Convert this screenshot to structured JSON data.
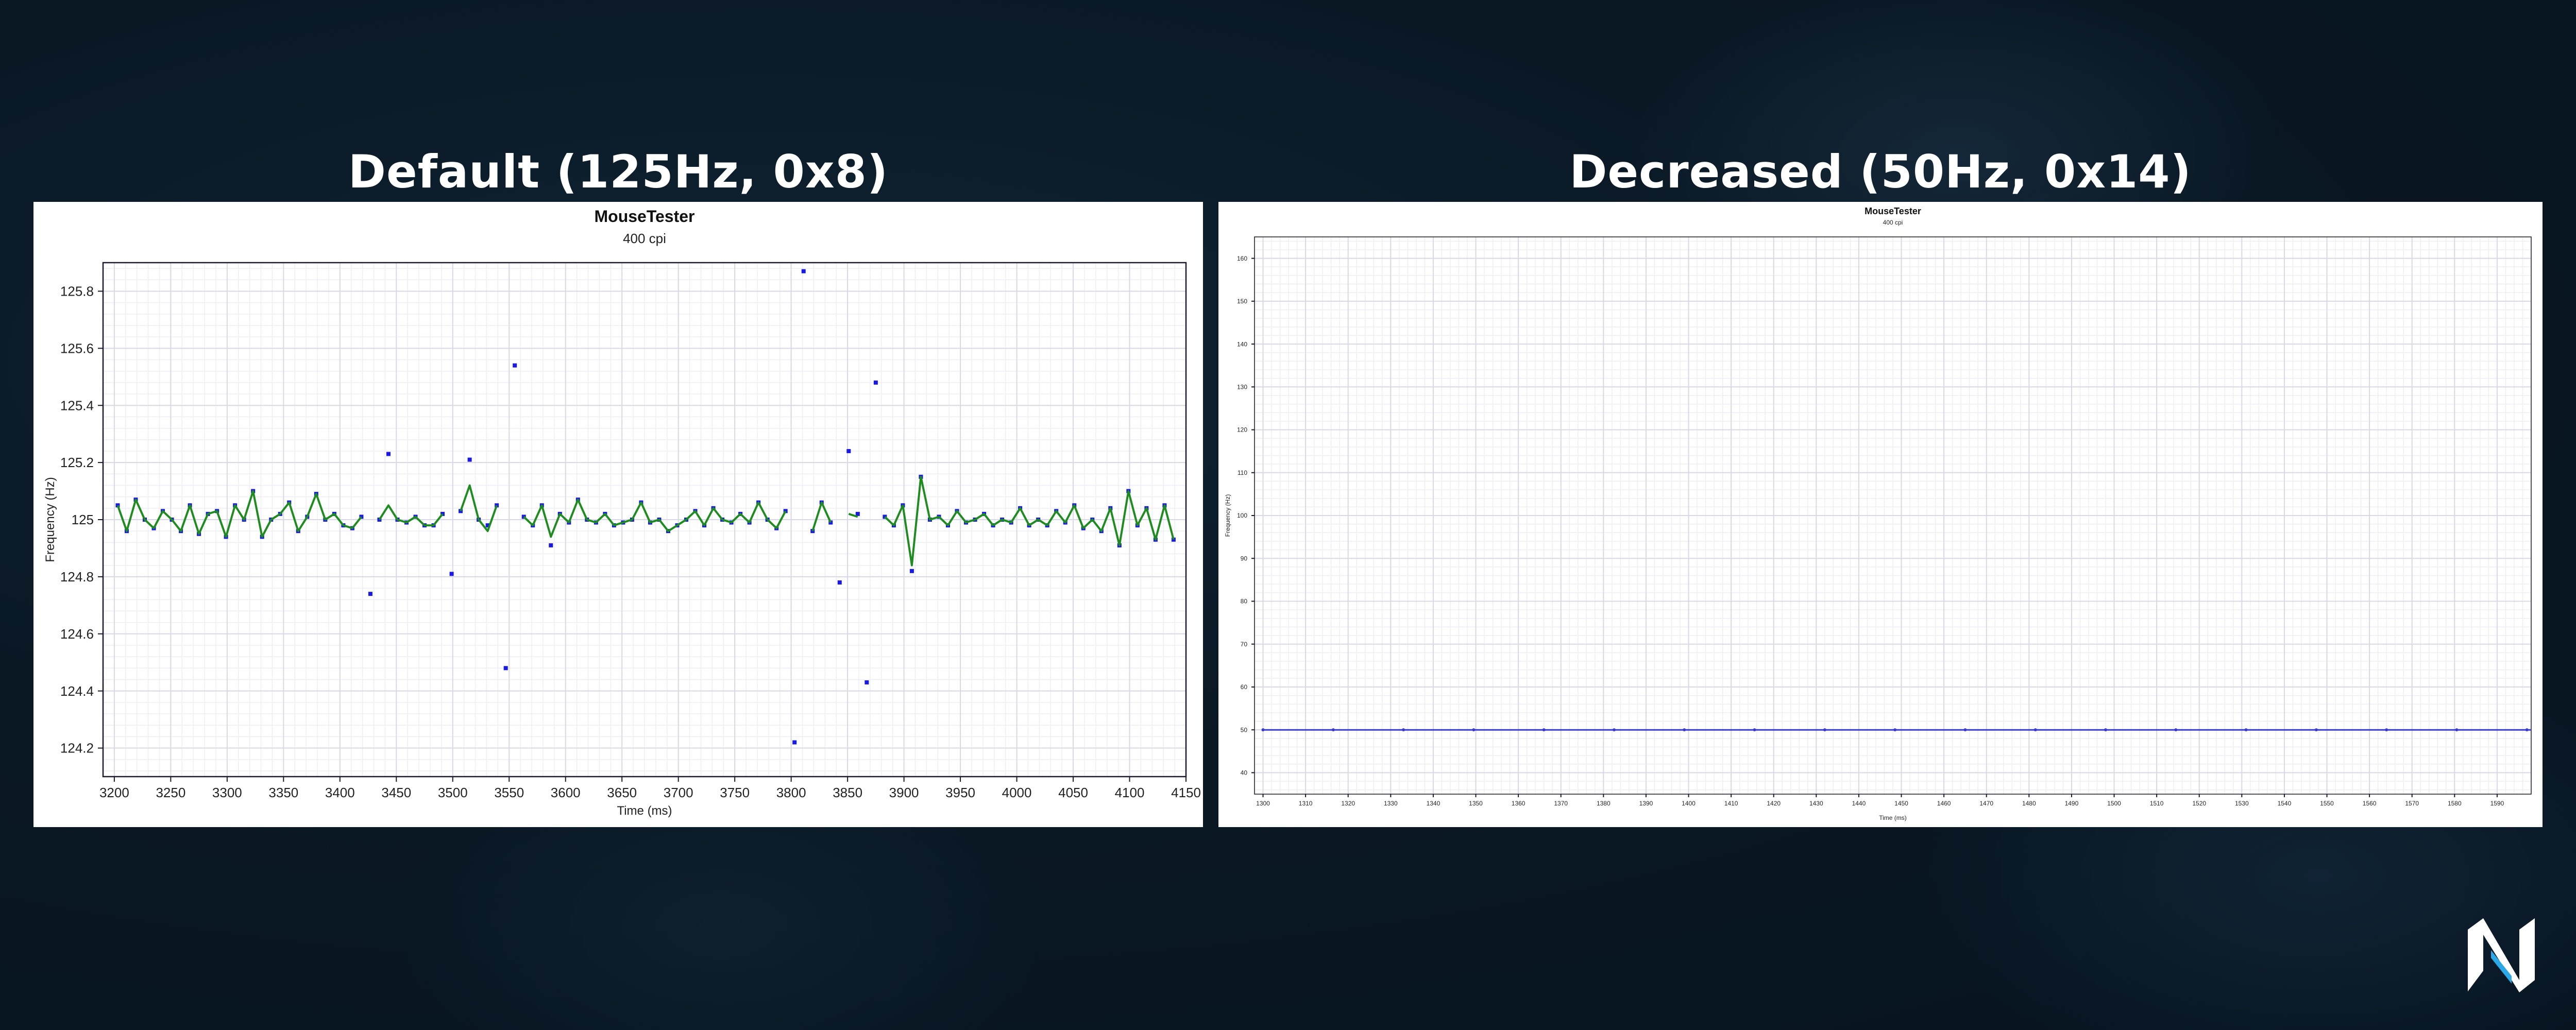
{
  "panels": {
    "left": {
      "heading": "Default (125Hz, 0x8)"
    },
    "right": {
      "heading": "Decreased (50Hz, 0x14)"
    }
  },
  "colors": {
    "background": "#0a1824",
    "points": "#1a1ae6",
    "interpolated_line": "#1e8c1e",
    "flat_line": "#3a3ad6",
    "grid": "#dcdcec"
  },
  "logo_icon": "nh-logo-icon",
  "chart_data": [
    {
      "type": "scatter",
      "title": "MouseTester",
      "subtitle": "400 cpi",
      "xlabel": "Time (ms)",
      "ylabel": "Frequency (Hz)",
      "xlim": [
        3190,
        4150
      ],
      "ylim": [
        124.1,
        125.9
      ],
      "xticks": [
        3200,
        3250,
        3300,
        3350,
        3400,
        3450,
        3500,
        3550,
        3600,
        3650,
        3700,
        3750,
        3800,
        3850,
        3900,
        3950,
        4000,
        4050,
        4100,
        4150
      ],
      "yticks": [
        124.2,
        124.4,
        124.6,
        124.8,
        125,
        125.2,
        125.4,
        125.6,
        125.8
      ],
      "ytick_labels": [
        "124.2",
        "124.4",
        "124.6",
        "124.8",
        "125",
        "125.2",
        "125.4",
        "125.6",
        "125.8"
      ],
      "grid": true,
      "series": [
        {
          "marker": "point",
          "x": [
            3203,
            3211,
            3219,
            3227,
            3235,
            3243,
            3251,
            3259,
            3267,
            3275,
            3283,
            3291,
            3299,
            3307,
            3315,
            3323,
            3331,
            3339,
            3347,
            3355,
            3363,
            3371,
            3379,
            3387,
            3395,
            3403,
            3411,
            3419,
            3427,
            3435,
            3443,
            3451,
            3459,
            3467,
            3475,
            3483,
            3491,
            3499,
            3507,
            3515,
            3523,
            3531,
            3539,
            3547,
            3555,
            3563,
            3571,
            3579,
            3587,
            3595,
            3603,
            3611,
            3619,
            3627,
            3635,
            3643,
            3651,
            3659,
            3667,
            3675,
            3683,
            3691,
            3699,
            3707,
            3715,
            3723,
            3731,
            3739,
            3747,
            3755,
            3763,
            3771,
            3779,
            3787,
            3795,
            3803,
            3811,
            3819,
            3827,
            3835,
            3843,
            3851,
            3859,
            3867,
            3875,
            3883,
            3891,
            3899,
            3907,
            3915,
            3923,
            3931,
            3939,
            3947,
            3955,
            3963,
            3971,
            3979,
            3987,
            3995,
            4003,
            4011,
            4019,
            4027,
            4035,
            4043,
            4051,
            4059,
            4067,
            4075,
            4083,
            4091,
            4099,
            4107,
            4115,
            4123,
            4131,
            4139
          ],
          "y": [
            125.05,
            124.96,
            125.07,
            125.0,
            124.97,
            125.03,
            125.0,
            124.96,
            125.05,
            124.95,
            125.02,
            125.03,
            124.94,
            125.05,
            125.0,
            125.1,
            124.94,
            125.0,
            125.02,
            125.06,
            124.96,
            125.01,
            125.09,
            125.0,
            125.02,
            124.98,
            124.97,
            125.01,
            124.74,
            125.0,
            125.23,
            125.0,
            124.99,
            125.01,
            124.98,
            124.98,
            125.02,
            124.81,
            125.03,
            125.21,
            125.0,
            124.98,
            125.05,
            124.48,
            125.54,
            125.01,
            124.98,
            125.05,
            124.91,
            125.02,
            124.99,
            125.07,
            125.0,
            124.99,
            125.02,
            124.98,
            124.99,
            125.0,
            125.06,
            124.99,
            125.0,
            124.96,
            124.98,
            125.0,
            125.03,
            124.98,
            125.04,
            125.0,
            124.99,
            125.02,
            124.99,
            125.06,
            125.0,
            124.97,
            125.03,
            124.22,
            125.87,
            124.96,
            125.06,
            124.99,
            124.78,
            125.24,
            125.02,
            124.43,
            125.48,
            125.01,
            124.98,
            125.05,
            124.82,
            125.15,
            125.0,
            125.01,
            124.98,
            125.03,
            124.99,
            125.0,
            125.02,
            124.98,
            125.0,
            124.99,
            125.04,
            124.98,
            125.0,
            124.98,
            125.03,
            124.99,
            125.05,
            124.97,
            125.0,
            124.96,
            125.04,
            124.91,
            125.1,
            124.98,
            125.04,
            124.93,
            125.05,
            124.93
          ]
        },
        {
          "marker": "line",
          "x": [
            3203,
            3211,
            3219,
            3227,
            3235,
            3243,
            3251,
            3259,
            3267,
            3275,
            3283,
            3291,
            3299,
            3307,
            3315,
            3323,
            3331,
            3339,
            3347,
            3355,
            3363,
            3371,
            3379,
            3387,
            3395,
            3403,
            3411,
            3419,
            null,
            3435,
            3443,
            3451,
            3459,
            3467,
            3475,
            3483,
            3491,
            null,
            3507,
            3515,
            3523,
            3531,
            3539,
            null,
            3563,
            3571,
            3579,
            3587,
            3595,
            3603,
            3611,
            3619,
            3627,
            3635,
            3643,
            3651,
            3659,
            3667,
            3675,
            3683,
            3691,
            3699,
            3707,
            3715,
            3723,
            3731,
            3739,
            3747,
            3755,
            3763,
            3771,
            3779,
            3787,
            3795,
            null,
            3819,
            3827,
            3835,
            null,
            3851,
            3859,
            null,
            3883,
            3891,
            3899,
            3907,
            3915,
            3923,
            3931,
            3939,
            3947,
            3955,
            3963,
            3971,
            3979,
            3987,
            3995,
            4003,
            4011,
            4019,
            4027,
            4035,
            4043,
            4051,
            4059,
            4067,
            4075,
            4083,
            4091,
            4099,
            4107,
            4115,
            4123,
            4131,
            4139
          ],
          "y": [
            125.05,
            124.96,
            125.07,
            125.0,
            124.97,
            125.03,
            125.0,
            124.96,
            125.05,
            124.95,
            125.02,
            125.03,
            124.94,
            125.05,
            125.0,
            125.1,
            124.94,
            125.0,
            125.02,
            125.06,
            124.96,
            125.01,
            125.09,
            125.0,
            125.02,
            124.98,
            124.97,
            125.01,
            null,
            125.0,
            125.05,
            125.0,
            124.99,
            125.01,
            124.98,
            124.98,
            125.02,
            null,
            125.03,
            125.12,
            125.0,
            124.96,
            125.05,
            null,
            125.01,
            124.98,
            125.05,
            124.94,
            125.02,
            124.99,
            125.07,
            125.0,
            124.99,
            125.02,
            124.98,
            124.99,
            125.0,
            125.06,
            124.99,
            125.0,
            124.96,
            124.98,
            125.0,
            125.03,
            124.98,
            125.04,
            125.0,
            124.99,
            125.02,
            124.99,
            125.06,
            125.0,
            124.97,
            125.03,
            null,
            124.96,
            125.06,
            124.99,
            null,
            125.02,
            125.01,
            null,
            125.01,
            124.98,
            125.05,
            124.84,
            125.15,
            125.0,
            125.01,
            124.98,
            125.03,
            124.99,
            125.0,
            125.02,
            124.98,
            125.0,
            124.99,
            125.04,
            124.98,
            125.0,
            124.98,
            125.03,
            124.99,
            125.05,
            124.97,
            125.0,
            124.96,
            125.04,
            124.91,
            125.1,
            124.98,
            125.04,
            124.93,
            125.05,
            124.93
          ]
        }
      ]
    },
    {
      "type": "line",
      "title": "MouseTester",
      "subtitle": "400 cpi",
      "xlabel": "Time (ms)",
      "ylabel": "Frequency (Hz)",
      "xlim": [
        1298,
        1598
      ],
      "ylim": [
        35,
        165
      ],
      "xticks": [
        1300,
        1310,
        1320,
        1330,
        1340,
        1350,
        1360,
        1370,
        1380,
        1390,
        1400,
        1410,
        1420,
        1430,
        1440,
        1450,
        1460,
        1470,
        1480,
        1490,
        1500,
        1510,
        1520,
        1530,
        1540,
        1550,
        1560,
        1570,
        1580,
        1590
      ],
      "yticks": [
        40,
        50,
        60,
        70,
        80,
        90,
        100,
        110,
        120,
        130,
        140,
        150,
        160
      ],
      "grid": true,
      "series": [
        {
          "marker": "line",
          "x": [
            1300,
            1598
          ],
          "y": [
            50,
            50
          ]
        }
      ]
    }
  ]
}
